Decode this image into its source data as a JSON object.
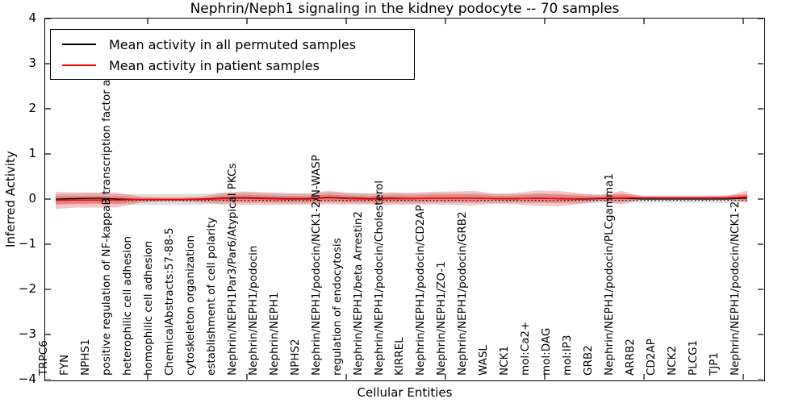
{
  "legend": {
    "items": [
      {
        "label": "Mean activity in all permuted samples",
        "color": "#000000"
      },
      {
        "label": "Mean activity in patient samples",
        "color": "#ff0000"
      }
    ]
  },
  "chart_data": {
    "type": "line",
    "title": "Nephrin/Neph1 signaling in the kidney podocyte -- 70 samples",
    "xlabel": "Cellular Entities",
    "ylabel": "Inferred Activity",
    "ylim": [
      -4,
      4
    ],
    "yticks": [
      4,
      3,
      2,
      1,
      0,
      -1,
      -2,
      -3,
      -4
    ],
    "ytick_labels": [
      "4",
      "3",
      "2",
      "1",
      "0",
      "−1",
      "−2",
      "−3",
      "−4"
    ],
    "grid": false,
    "legend_position": "upper left",
    "zero_line": {
      "y": 0,
      "style": "dotted",
      "color": "#000000"
    },
    "categories": [
      "TRPC6",
      "FYN",
      "NPHS1",
      "positive regulation of NF-kappaB transcription factor a",
      "heterophilic cell adhesion",
      "homophilic cell adhesion",
      "ChemicalAbstracts:57-88-5",
      "cytoskeleton organization",
      "establishment of cell polarity",
      "Nephrin/NEPH1Par3/Par6/Atypical PKCs",
      "Nephrin/NEPH1/podocin",
      "Nephrin/NEPH1",
      "NPHS2",
      "Nephrin/NEPH1/podocin/NCK1-2/N-WASP",
      "regulation of endocytosis",
      "Nephrin/NEPH1/beta Arrestin2",
      "Nephrin/NEPH1/podocin/Cholesterol",
      "KIRREL",
      "Nephrin/NEPH1/podocin/CD2AP",
      "Nephrin/NEPH1/ZO-1",
      "Nephrin/NEPH1/podocin/GRB2",
      "WASL",
      "NCK1",
      "mol:Ca2+",
      "mol:DAG",
      "mol:IP3",
      "GRB2",
      "Nephrin/NEPH1/podocin/PLCgamma1",
      "ARRB2",
      "CD2AP",
      "NCK2",
      "PLCG1",
      "TJP1",
      "Nephrin/NEPH1/podocin/NCK1-2"
    ],
    "series": [
      {
        "name": "Mean activity in all permuted samples",
        "color": "#000000",
        "band_color": "rgba(0,0,0,0.13)",
        "values": [
          0.0,
          0.01,
          0.02,
          0.0,
          -0.01,
          -0.01,
          -0.01,
          0.0,
          0.02,
          0.03,
          0.02,
          0.01,
          0.01,
          0.04,
          0.02,
          0.01,
          0.02,
          0.01,
          0.02,
          0.02,
          0.02,
          0.01,
          0.01,
          0.02,
          0.01,
          0.0,
          0.01,
          0.02,
          0.0,
          0.0,
          0.0,
          0.0,
          0.0,
          0.02
        ],
        "band_half_width": [
          0.11,
          0.11,
          0.11,
          0.11,
          0.12,
          0.12,
          0.12,
          0.12,
          0.12,
          0.12,
          0.11,
          0.11,
          0.11,
          0.12,
          0.11,
          0.11,
          0.11,
          0.11,
          0.11,
          0.11,
          0.11,
          0.1,
          0.1,
          0.11,
          0.1,
          0.1,
          0.09,
          0.1,
          0.08,
          0.08,
          0.08,
          0.08,
          0.09,
          0.07
        ]
      },
      {
        "name": "Mean activity in patient samples",
        "color": "#ff0000",
        "band_color": "rgba(225,45,45,0.28)",
        "band_inner_color": "rgba(225,45,45,0.30)",
        "values": [
          -0.03,
          -0.02,
          -0.02,
          -0.02,
          -0.01,
          -0.01,
          -0.01,
          -0.01,
          0.01,
          0.02,
          0.01,
          0.0,
          0.0,
          0.03,
          0.01,
          0.0,
          0.01,
          0.01,
          0.02,
          0.02,
          0.02,
          0.01,
          0.01,
          0.02,
          0.01,
          0.01,
          0.02,
          0.03,
          0.03,
          0.03,
          0.03,
          0.03,
          0.03,
          0.05
        ],
        "band_half_width": [
          0.19,
          0.17,
          0.17,
          0.16,
          0.07,
          0.05,
          0.05,
          0.07,
          0.13,
          0.15,
          0.14,
          0.13,
          0.12,
          0.15,
          0.13,
          0.12,
          0.14,
          0.13,
          0.14,
          0.15,
          0.16,
          0.11,
          0.13,
          0.17,
          0.17,
          0.12,
          0.07,
          0.15,
          0.03,
          0.03,
          0.03,
          0.03,
          0.04,
          0.14
        ]
      }
    ]
  }
}
